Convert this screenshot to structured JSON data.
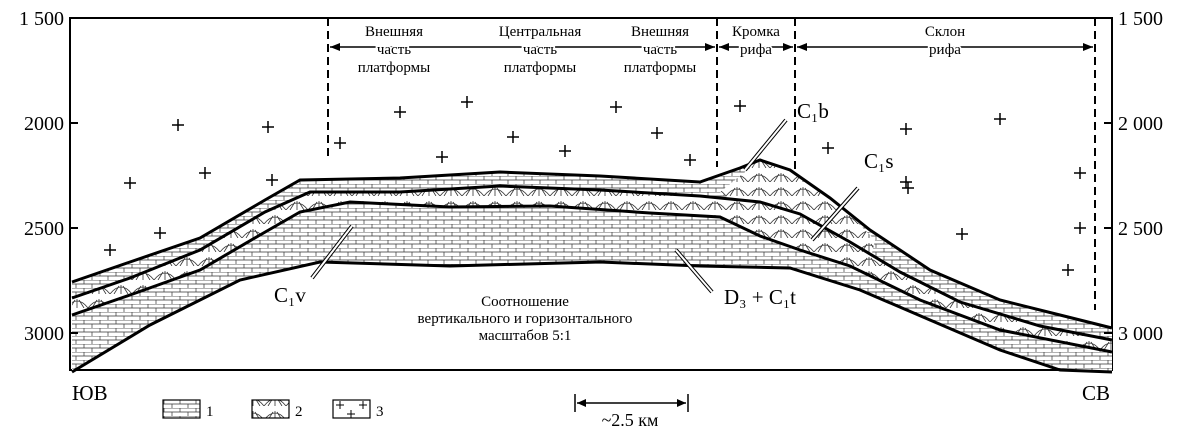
{
  "left_axis": {
    "ticks": [
      {
        "value": 1500,
        "label": "1 500"
      },
      {
        "value": 2000,
        "label": "2000"
      },
      {
        "value": 2500,
        "label": "2500"
      },
      {
        "value": 3000,
        "label": "3000"
      }
    ]
  },
  "right_axis": {
    "ticks": [
      {
        "value": 1500,
        "label": "1 500"
      },
      {
        "value": 2000,
        "label": "2 000"
      },
      {
        "value": 2500,
        "label": "2 500"
      },
      {
        "value": 3000,
        "label": "3 000"
      }
    ]
  },
  "zones": [
    {
      "lines": [
        "Внешняя",
        "часть",
        "платформы"
      ]
    },
    {
      "lines": [
        "Центральная",
        "часть",
        "платформы"
      ]
    },
    {
      "lines": [
        "Внешняя",
        "часть",
        "платформы"
      ]
    },
    {
      "lines": [
        "Кромка",
        "рифа"
      ]
    },
    {
      "lines": [
        "Склон",
        "рифа"
      ]
    }
  ],
  "layers": {
    "c1b": "C₁b",
    "c1s": "C₁s",
    "c1v": "C₁v",
    "d3c1t": "D₃ + C₁t"
  },
  "note": [
    "Соотношение",
    "вертикального и горизонтального",
    "масштабов 5:1"
  ],
  "directions": {
    "left": "ЮВ",
    "right": "СВ"
  },
  "legend": [
    "1",
    "2",
    "3"
  ],
  "scale": "~2.5 км"
}
